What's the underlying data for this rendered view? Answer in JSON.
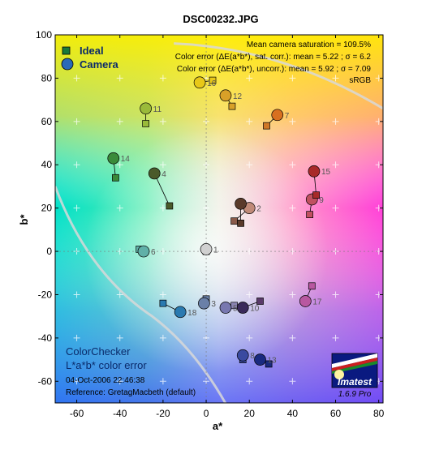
{
  "chart_data": {
    "type": "scatter",
    "title": "DSC00232.JPG",
    "xlabel": "a*",
    "ylabel": "b*",
    "xlim": [
      -70,
      82
    ],
    "ylim": [
      -70,
      100
    ],
    "x_ticks": [
      "-60",
      "-40",
      "-20",
      "0",
      "20",
      "40",
      "60",
      "80"
    ],
    "y_ticks": [
      "100",
      "80",
      "60",
      "40",
      "20",
      "0",
      "-20",
      "-40",
      "-60"
    ],
    "grid": true,
    "legend": [
      {
        "label": "Ideal",
        "marker": "square"
      },
      {
        "label": "Camera",
        "marker": "circle"
      }
    ],
    "legend_position": "top-left",
    "stats": [
      "Mean camera saturation = 109.5%",
      "Color error (ΔE(a*b*), sat. corr.):  mean = 5.22 ;  σ = 6.2",
      "Color error (ΔE(a*b*), uncorr.):  mean = 5.92 ;  σ = 7.09",
      "sRGB"
    ],
    "corner_title_lines": [
      "ColorChecker",
      "L*a*b* color error"
    ],
    "timestamp": "04-Oct-2006 22:46:38",
    "reference": "Reference: GretagMacbeth (default)",
    "logo": {
      "name": "Imatest",
      "version": "1.6.9  Pro"
    },
    "patches": [
      {
        "label": "1",
        "ideal": [
          0,
          0
        ],
        "camera": [
          0,
          1
        ],
        "color_ideal": "#c9c9c9",
        "color_camera": "#d0d0d0"
      },
      {
        "label": "2",
        "ideal": [
          13,
          14
        ],
        "camera": [
          20,
          20
        ],
        "color_ideal": "#8a5a4a",
        "color_camera": "#c08a78"
      },
      {
        "label": "3",
        "ideal": [
          0,
          -22
        ],
        "camera": [
          -1,
          -24
        ],
        "color_ideal": "#6a80a8",
        "color_camera": "#6a80a8"
      },
      {
        "label": "4",
        "ideal": [
          -17,
          21
        ],
        "camera": [
          -24,
          36
        ],
        "color_ideal": "#4a5a2a",
        "color_camera": "#4a5a2a"
      },
      {
        "label": "5",
        "ideal": [
          13,
          -25
        ],
        "camera": [
          9,
          -26
        ],
        "color_ideal": "#8a84b2",
        "color_camera": "#7878b0"
      },
      {
        "label": "6",
        "ideal": [
          -31,
          1
        ],
        "camera": [
          -29,
          0
        ],
        "color_ideal": "#60b0a8",
        "color_camera": "#60b0a8"
      },
      {
        "label": "7",
        "ideal": [
          28,
          58
        ],
        "camera": [
          33,
          63
        ],
        "color_ideal": "#d07828",
        "color_camera": "#d87020"
      },
      {
        "label": "8",
        "ideal": [
          17,
          -50
        ],
        "camera": [
          17,
          -48
        ],
        "color_ideal": "#3a4aa0",
        "color_camera": "#3a4aa0"
      },
      {
        "label": "9",
        "ideal": [
          48,
          17
        ],
        "camera": [
          49,
          24
        ],
        "color_ideal": "#c05060",
        "color_camera": "#c05060"
      },
      {
        "label": "10",
        "ideal": [
          25,
          -23
        ],
        "camera": [
          17,
          -26
        ],
        "color_ideal": "#5a3a6a",
        "color_camera": "#3a2a5a"
      },
      {
        "label": "11",
        "ideal": [
          -28,
          59
        ],
        "camera": [
          -28,
          66
        ],
        "color_ideal": "#9aba3a",
        "color_camera": "#9aba3a"
      },
      {
        "label": "12",
        "ideal": [
          12,
          67
        ],
        "camera": [
          9,
          72
        ],
        "color_ideal": "#d8a028",
        "color_camera": "#d8a028"
      },
      {
        "label": "13",
        "ideal": [
          29,
          -52
        ],
        "camera": [
          25,
          -50
        ],
        "color_ideal": "#1a2a80",
        "color_camera": "#1a2a80"
      },
      {
        "label": "14",
        "ideal": [
          -42,
          34
        ],
        "camera": [
          -43,
          43
        ],
        "color_ideal": "#3a8a3a",
        "color_camera": "#3a8a3a"
      },
      {
        "label": "15",
        "ideal": [
          51,
          26
        ],
        "camera": [
          50,
          37
        ],
        "color_ideal": "#a82a2a",
        "color_camera": "#a82a2a"
      },
      {
        "label": "16",
        "ideal": [
          3,
          79
        ],
        "camera": [
          -3,
          78
        ],
        "color_ideal": "#e8c818",
        "color_camera": "#e8c818"
      },
      {
        "label": "17",
        "ideal": [
          49,
          -16
        ],
        "camera": [
          46,
          -23
        ],
        "color_ideal": "#b858a0",
        "color_camera": "#b858a0"
      },
      {
        "label": "18",
        "ideal": [
          -20,
          -24
        ],
        "camera": [
          -12,
          -28
        ],
        "color_ideal": "#2a7ab0",
        "color_camera": "#2a7ab0"
      },
      {
        "label": "",
        "ideal": [
          16,
          13
        ],
        "camera": [
          16,
          22
        ],
        "color_ideal": "#5a3a2a",
        "color_camera": "#5a3a2a"
      }
    ]
  }
}
